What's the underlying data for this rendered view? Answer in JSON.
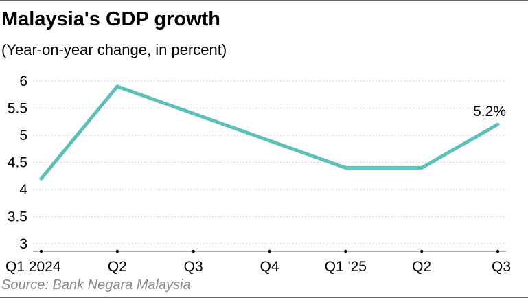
{
  "title": "Malaysia's GDP growth",
  "subtitle": "(Year-on-year change, in percent)",
  "source": "Source: Bank Negara Malaysia",
  "chart_data": {
    "type": "line",
    "title": "Malaysia's GDP growth",
    "subtitle": "(Year-on-year change, in percent)",
    "categories": [
      "Q1 2024",
      "Q2",
      "Q3",
      "Q4",
      "Q1 '25",
      "Q2",
      "Q3"
    ],
    "values": [
      4.2,
      5.9,
      5.4,
      4.9,
      4.4,
      4.4,
      5.2
    ],
    "ylim": [
      3,
      6
    ],
    "yticks": [
      "3",
      "3.5",
      "4",
      "4.5",
      "5",
      "5.5",
      "6"
    ],
    "grid": true,
    "line_color": "#5bc0b8",
    "annotation": "5.2%"
  }
}
